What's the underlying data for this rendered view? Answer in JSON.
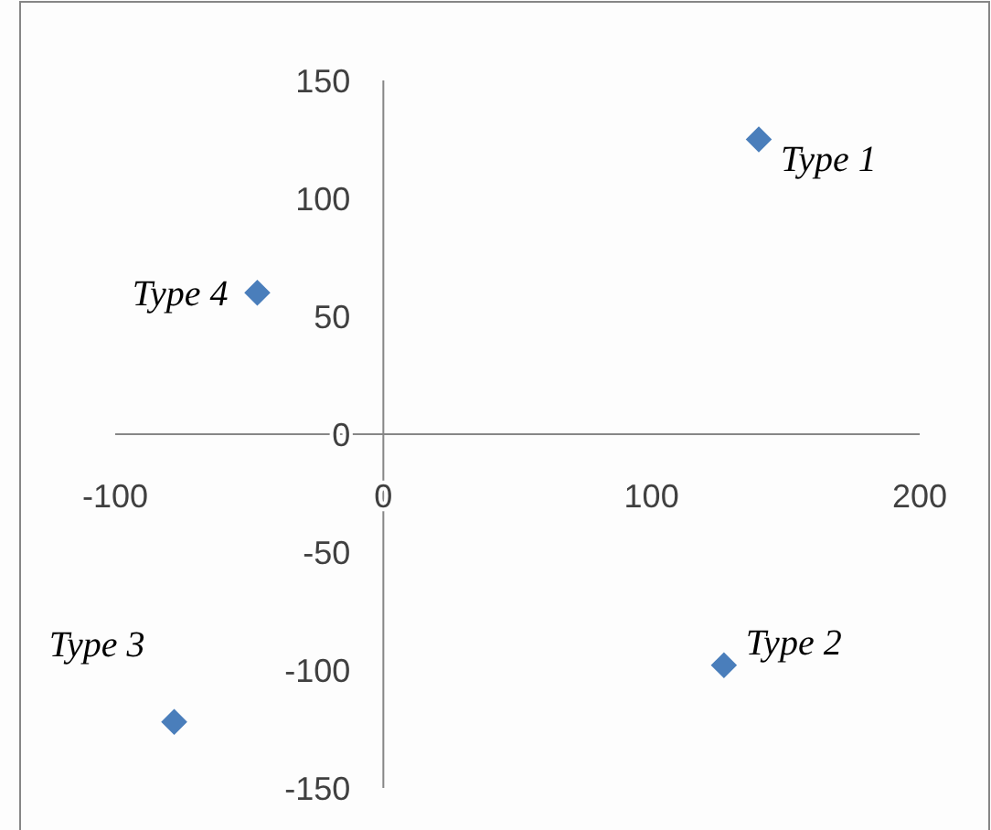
{
  "chart_data": {
    "type": "scatter",
    "x": [
      140,
      127,
      -78,
      -47
    ],
    "values": [
      125,
      -98,
      -122,
      60
    ],
    "color": "#4a7ebb",
    "marker": "diamond",
    "grid": false,
    "xlim": [
      -100,
      200
    ],
    "xticks": [
      -100,
      0,
      100,
      200
    ],
    "ylim": [
      -150,
      150
    ],
    "yticks": [
      -150,
      -100,
      -50,
      0,
      50,
      100,
      150
    ],
    "annotations": [
      {
        "text": "Type 1",
        "x": 140,
        "y": 125
      },
      {
        "text": "Type 2",
        "x": 127,
        "y": -98
      },
      {
        "text": "Type 3",
        "x": -78,
        "y": -122
      },
      {
        "text": "Type 4",
        "x": -47,
        "y": 60
      }
    ]
  }
}
